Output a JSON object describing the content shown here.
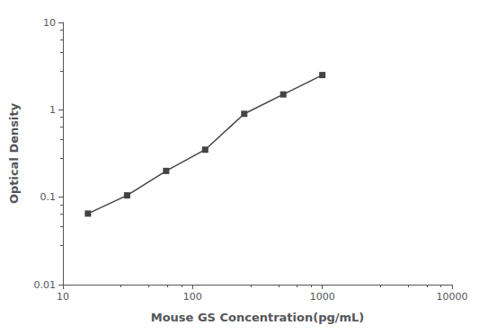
{
  "chart_data": {
    "type": "line",
    "x": [
      15.6,
      31.25,
      62.5,
      125,
      250,
      500,
      1000
    ],
    "values": [
      0.065,
      0.105,
      0.2,
      0.35,
      0.9,
      1.5,
      2.5
    ],
    "color": "#444444",
    "marker": "square",
    "xlabel": "Mouse GS Concentration(pg/mL)",
    "ylabel": "Optical Density",
    "xlim": [
      10,
      10000
    ],
    "ylim": [
      0.01,
      10
    ],
    "xticks": [
      10,
      100,
      1000,
      10000
    ],
    "yticks": [
      0.01,
      0.1,
      1,
      10
    ],
    "log": true,
    "grid": false
  }
}
